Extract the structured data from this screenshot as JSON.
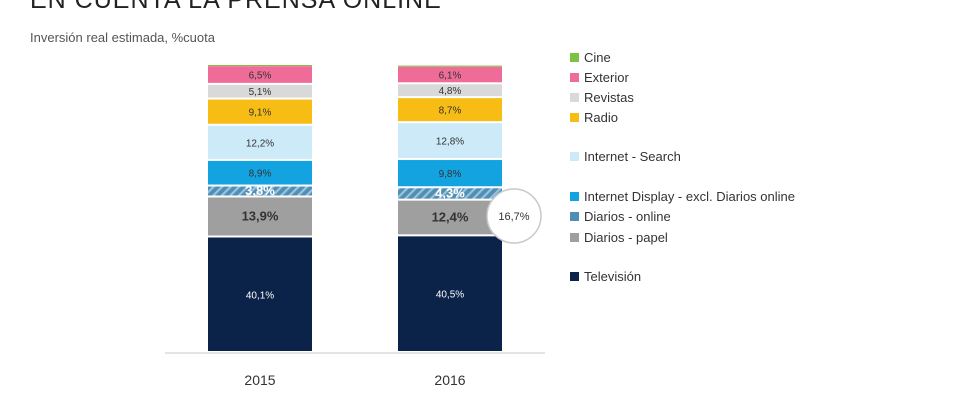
{
  "title": "EN CUENTA LA PRENSA ONLINE",
  "subtitle": "Inversión real estimada, %cuota",
  "chart_data": {
    "type": "bar",
    "stacked": true,
    "categories": [
      "2015",
      "2016"
    ],
    "series": [
      {
        "name": "Televisión",
        "color": "#0c2349",
        "values": [
          40.1,
          40.5
        ],
        "labels": [
          "40,1%",
          "40,5%"
        ]
      },
      {
        "name": "Diarios - papel",
        "color": "#9f9f9f",
        "values": [
          13.9,
          12.4
        ],
        "labels": [
          "13,9%",
          "12,4%"
        ]
      },
      {
        "name": "Diarios - online",
        "color": "#4f8fb6",
        "values": [
          3.8,
          4.3
        ],
        "labels": [
          "3,8%",
          "4,3%"
        ]
      },
      {
        "name": "Internet Display - excl. Diarios online",
        "color": "#12a3e0",
        "values": [
          8.9,
          9.8
        ],
        "labels": [
          "8,9%",
          "9,8%"
        ]
      },
      {
        "name": "Internet - Search",
        "color": "#cdeaf8",
        "values": [
          12.2,
          12.8
        ],
        "labels": [
          "12,2%",
          "12,8%"
        ]
      },
      {
        "name": "Radio",
        "color": "#f8bd15",
        "values": [
          9.1,
          8.7
        ],
        "labels": [
          "9,1%",
          "8,7%"
        ]
      },
      {
        "name": "Revistas",
        "color": "#d9d9d9",
        "values": [
          5.1,
          4.8
        ],
        "labels": [
          "5,1%",
          "4,8%"
        ]
      },
      {
        "name": "Exterior",
        "color": "#ef6c98",
        "values": [
          6.5,
          6.1
        ],
        "labels": [
          "6,5%",
          "6,1%"
        ]
      },
      {
        "name": "Cine",
        "color": "#7dc242",
        "values": [
          0.4,
          0.4
        ],
        "labels": [
          "",
          ""
        ]
      }
    ],
    "legend_order": [
      "Cine",
      "Exterior",
      "Revistas",
      "Radio",
      "Internet - Search",
      "Internet Display - excl. Diarios online",
      "Diarios - online",
      "Diarios - papel",
      "Televisión"
    ],
    "callout": {
      "category": "2016",
      "label": "16,7%"
    },
    "legend_placement": "right",
    "grid": false
  }
}
